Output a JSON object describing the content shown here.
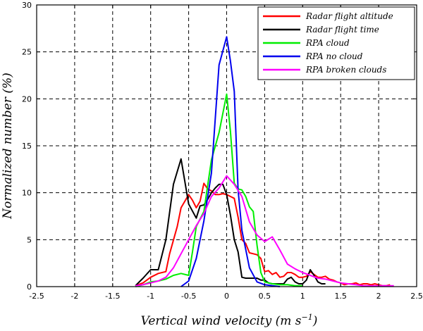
{
  "chart_data": {
    "type": "line",
    "xlabel": "Vertical wind velocity (m s",
    "xlabel_exponent": "−1",
    "xlabel_close": ")",
    "ylabel": "Normalized number (%)",
    "xlim": [
      -2.5,
      2.5
    ],
    "ylim": [
      0,
      30
    ],
    "xticks": [
      -2.5,
      -2,
      -1.5,
      -1,
      -0.5,
      0,
      0.5,
      1,
      1.5,
      2,
      2.5
    ],
    "xtick_labels": [
      "-2.5",
      "-2",
      "-1.5",
      "-1",
      "-0.5",
      "0",
      "0.5",
      "1",
      "1.5",
      "2",
      "2.5"
    ],
    "yticks": [
      0,
      5,
      10,
      15,
      20,
      25,
      30
    ],
    "ytick_labels": [
      "0",
      "5",
      "10",
      "15",
      "20",
      "25",
      "30"
    ],
    "grid": true,
    "legend_position": "top-right",
    "series": [
      {
        "name": "Radar flight altitude",
        "color": "#ff0000",
        "x": [
          -1.2,
          -1.1,
          -1.0,
          -0.9,
          -0.8,
          -0.75,
          -0.65,
          -0.6,
          -0.55,
          -0.5,
          -0.45,
          -0.4,
          -0.35,
          -0.3,
          -0.25,
          -0.2,
          -0.15,
          -0.1,
          -0.05,
          0.0,
          0.05,
          0.1,
          0.15,
          0.2,
          0.25,
          0.3,
          0.35,
          0.4,
          0.45,
          0.5,
          0.55,
          0.6,
          0.65,
          0.7,
          0.75,
          0.8,
          0.85,
          0.9,
          0.95,
          1.0,
          1.05,
          1.1,
          1.15,
          1.2,
          1.25,
          1.3,
          1.35,
          1.4,
          1.45,
          1.5,
          1.55,
          1.6,
          1.65,
          1.7,
          1.75,
          1.8,
          1.85,
          1.9,
          1.95,
          2.0,
          2.05,
          2.1,
          2.15
        ],
        "y": [
          0.1,
          0.4,
          1.0,
          1.4,
          1.6,
          3.5,
          6.4,
          8.4,
          9.1,
          9.8,
          9.2,
          8.4,
          9.1,
          11.0,
          10.4,
          10.2,
          9.8,
          9.8,
          9.9,
          9.8,
          9.6,
          9.4,
          7.4,
          5.0,
          4.6,
          3.6,
          3.5,
          3.4,
          3.0,
          1.6,
          1.7,
          1.3,
          1.5,
          1.0,
          1.1,
          1.5,
          1.5,
          1.3,
          1.0,
          1.0,
          1.1,
          1.6,
          1.3,
          1.0,
          1.0,
          1.1,
          0.8,
          0.7,
          0.5,
          0.4,
          0.2,
          0.3,
          0.3,
          0.4,
          0.2,
          0.3,
          0.3,
          0.2,
          0.3,
          0.2,
          0.1,
          0.1,
          0.2
        ]
      },
      {
        "name": "Radar flight time",
        "color": "#000000",
        "x": [
          -1.2,
          -1.1,
          -1.0,
          -0.9,
          -0.8,
          -0.7,
          -0.6,
          -0.5,
          -0.4,
          -0.35,
          -0.3,
          -0.25,
          -0.2,
          -0.15,
          -0.1,
          -0.05,
          0.0,
          0.05,
          0.1,
          0.15,
          0.2,
          0.25,
          0.3,
          0.35,
          0.4,
          0.45,
          0.5,
          0.55,
          0.6,
          0.65,
          0.7,
          0.75,
          0.8,
          0.85,
          0.9,
          0.95,
          1.0,
          1.05,
          1.1,
          1.15,
          1.2,
          1.25,
          1.3
        ],
        "y": [
          0.1,
          0.9,
          1.8,
          1.8,
          5.0,
          10.9,
          13.6,
          8.8,
          7.3,
          8.6,
          8.7,
          9.3,
          10.0,
          10.5,
          10.9,
          10.9,
          9.8,
          7.6,
          5.0,
          3.7,
          1.0,
          0.9,
          0.9,
          0.9,
          0.9,
          0.7,
          0.7,
          0.4,
          0.3,
          0.3,
          0.3,
          0.3,
          0.8,
          1.0,
          0.5,
          0.3,
          0.3,
          0.7,
          1.8,
          1.2,
          0.5,
          0.3,
          0.3
        ]
      },
      {
        "name": "RPA cloud",
        "color": "#00ee00",
        "x": [
          -1.2,
          -1.1,
          -1.0,
          -0.9,
          -0.8,
          -0.7,
          -0.6,
          -0.5,
          -0.45,
          -0.4,
          -0.3,
          -0.2,
          -0.1,
          0.0,
          0.05,
          0.1,
          0.15,
          0.2,
          0.25,
          0.3,
          0.35,
          0.4,
          0.45,
          0.5,
          0.55,
          0.6,
          0.7,
          0.8,
          0.9,
          1.0
        ],
        "y": [
          0.0,
          0.2,
          0.5,
          0.6,
          0.8,
          1.2,
          1.4,
          1.2,
          3.7,
          6.4,
          8.0,
          13.5,
          16.4,
          20.5,
          16.5,
          11.0,
          10.4,
          10.3,
          9.6,
          8.5,
          8.0,
          4.4,
          1.5,
          0.5,
          0.4,
          0.3,
          0.2,
          0.2,
          0.1,
          0.1
        ]
      },
      {
        "name": "RPA no cloud",
        "color": "#0000ee",
        "x": [
          -0.6,
          -0.5,
          -0.4,
          -0.3,
          -0.2,
          -0.1,
          0.0,
          0.05,
          0.1,
          0.15,
          0.2,
          0.3,
          0.4,
          0.5,
          0.6,
          0.7
        ],
        "y": [
          0.0,
          0.6,
          3.0,
          7.0,
          12.1,
          23.6,
          26.6,
          24.0,
          20.8,
          10.3,
          6.0,
          2.0,
          0.5,
          0.2,
          0.1,
          0.0
        ]
      },
      {
        "name": "RPA broken clouds",
        "color": "#ff00ff",
        "x": [
          -1.2,
          -1.1,
          -1.0,
          -0.9,
          -0.8,
          -0.7,
          -0.6,
          -0.5,
          -0.4,
          -0.3,
          -0.2,
          -0.1,
          0.0,
          0.1,
          0.2,
          0.3,
          0.4,
          0.5,
          0.6,
          0.7,
          0.8,
          0.9,
          1.0,
          1.1,
          1.2,
          1.3,
          1.4,
          1.5,
          1.6,
          1.7,
          1.8,
          1.9,
          2.0,
          2.1,
          2.2
        ],
        "y": [
          0.1,
          0.2,
          0.4,
          0.6,
          1.0,
          2.0,
          3.5,
          5.0,
          6.5,
          7.8,
          9.6,
          10.5,
          11.8,
          10.9,
          9.6,
          6.9,
          5.5,
          4.8,
          5.3,
          3.9,
          2.4,
          1.9,
          1.5,
          1.2,
          0.9,
          0.8,
          0.6,
          0.4,
          0.3,
          0.2,
          0.1,
          0.1,
          0.1,
          0.1,
          0.1
        ]
      }
    ]
  }
}
